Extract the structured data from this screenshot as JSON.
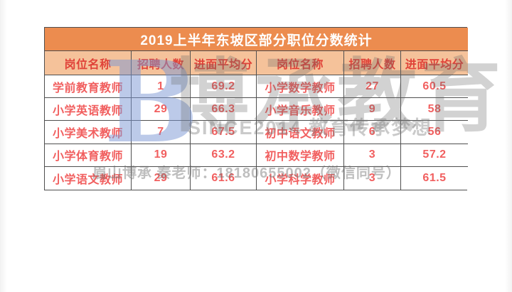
{
  "chart_data": {
    "type": "table",
    "title": "2019上半年东坡区部分职位分数统计",
    "columns": [
      "岗位名称",
      "招聘人数",
      "进面平均分",
      "岗位名称",
      "招聘人数",
      "进面平均分"
    ],
    "rows": [
      [
        "学前教育教师",
        1,
        69.2,
        "小学数学教师",
        27,
        60.5
      ],
      [
        "小学英语教师",
        29,
        66.3,
        "小学音乐教师",
        9,
        58
      ],
      [
        "小学美术教师",
        7,
        67.5,
        "初中语文教师",
        6,
        56
      ],
      [
        "小学体育教师",
        19,
        63.2,
        "初中数学教师",
        3,
        57.2
      ],
      [
        "小学语文教师",
        29,
        61.6,
        "小学科学教师",
        3,
        61.5
      ]
    ],
    "layout_hints": {
      "title_row": "merged across all 6 columns",
      "grid": "on, dark gray borders"
    }
  },
  "watermark": {
    "logo_letter": "B",
    "brand_text": "博承教育",
    "slogan": "SINCE2014 教育传承梦想",
    "contact": "眉山博承 秦老师：18180655002（微信同号）"
  },
  "colors": {
    "title_bg": "#EC8C4F",
    "title_text": "#FFFFFF",
    "header_bg": "#F5C29A",
    "header_text": "#E04238",
    "body_text": "#F15F5F",
    "border": "#4F4F4F",
    "logo_blue": "#7A96D4",
    "watermark_gray": "#9E9E9E"
  }
}
